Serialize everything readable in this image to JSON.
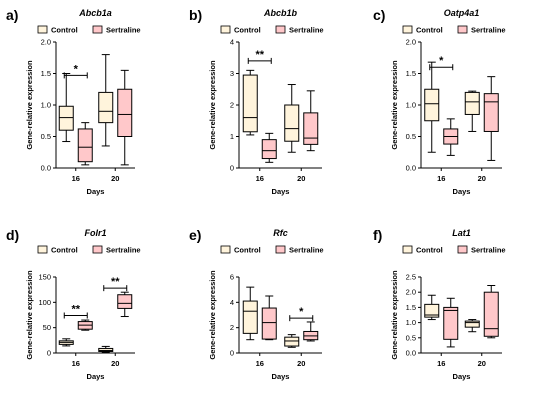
{
  "legend": {
    "control": "Control",
    "sertraline": "Sertraline"
  },
  "colors": {
    "control_fill": "#FFF4DC",
    "sertraline_fill": "#FFC8CA",
    "stroke": "#000000"
  },
  "chart_data": [
    {
      "panel_label": "a)",
      "type": "box",
      "title": "Abcb1a",
      "xlabel": "Days",
      "ylabel": "Gene-relative expression",
      "categories": [
        "16",
        "20"
      ],
      "ylim": [
        0,
        2.0
      ],
      "yticks": [
        0.0,
        0.5,
        1.0,
        1.5,
        2.0
      ],
      "tick_labels": [
        "0.0",
        "0.5",
        "1.0",
        "1.5",
        "2.0"
      ],
      "series": [
        {
          "name": "Control",
          "boxes": [
            {
              "min": 0.42,
              "q1": 0.6,
              "median": 0.8,
              "q3": 0.98,
              "max": 1.5
            },
            {
              "min": 0.35,
              "q1": 0.72,
              "median": 0.9,
              "q3": 1.2,
              "max": 1.8
            }
          ]
        },
        {
          "name": "Sertraline",
          "boxes": [
            {
              "min": 0.05,
              "q1": 0.1,
              "median": 0.33,
              "q3": 0.62,
              "max": 0.72
            },
            {
              "min": 0.05,
              "q1": 0.5,
              "median": 0.85,
              "q3": 1.25,
              "max": 1.55
            }
          ]
        }
      ],
      "significance": [
        {
          "category": "16",
          "label": "*",
          "value": 1.47
        }
      ]
    },
    {
      "panel_label": "b)",
      "type": "box",
      "title": "Abcb1b",
      "xlabel": "Days",
      "ylabel": "Gene-relative expression",
      "categories": [
        "16",
        "20"
      ],
      "ylim": [
        0,
        4
      ],
      "yticks": [
        0,
        1,
        2,
        3,
        4
      ],
      "tick_labels": [
        "0",
        "1",
        "2",
        "3",
        "4"
      ],
      "series": [
        {
          "name": "Control",
          "boxes": [
            {
              "min": 1.05,
              "q1": 1.15,
              "median": 1.6,
              "q3": 2.95,
              "max": 3.1
            },
            {
              "min": 0.5,
              "q1": 0.85,
              "median": 1.25,
              "q3": 2.0,
              "max": 2.65
            }
          ]
        },
        {
          "name": "Sertraline",
          "boxes": [
            {
              "min": 0.18,
              "q1": 0.3,
              "median": 0.55,
              "q3": 0.9,
              "max": 1.1
            },
            {
              "min": 0.55,
              "q1": 0.75,
              "median": 0.95,
              "q3": 1.75,
              "max": 2.45
            }
          ]
        }
      ],
      "significance": [
        {
          "category": "16",
          "label": "**",
          "value": 3.4
        }
      ]
    },
    {
      "panel_label": "c)",
      "type": "box",
      "title": "Oatp4a1",
      "xlabel": "Days",
      "ylabel": "Gene-relative expression",
      "categories": [
        "16",
        "20"
      ],
      "ylim": [
        0,
        2.0
      ],
      "yticks": [
        0.0,
        0.5,
        1.0,
        1.5,
        2.0
      ],
      "tick_labels": [
        "0.0",
        "0.5",
        "1.0",
        "1.5",
        "2.0"
      ],
      "series": [
        {
          "name": "Control",
          "boxes": [
            {
              "min": 0.25,
              "q1": 0.75,
              "median": 1.02,
              "q3": 1.25,
              "max": 1.68
            },
            {
              "min": 0.58,
              "q1": 0.85,
              "median": 1.05,
              "q3": 1.2,
              "max": 1.22
            }
          ]
        },
        {
          "name": "Sertraline",
          "boxes": [
            {
              "min": 0.2,
              "q1": 0.38,
              "median": 0.5,
              "q3": 0.62,
              "max": 0.78
            },
            {
              "min": 0.12,
              "q1": 0.58,
              "median": 1.05,
              "q3": 1.18,
              "max": 1.45
            }
          ]
        }
      ],
      "significance": [
        {
          "category": "16",
          "label": "*",
          "value": 1.6
        }
      ]
    },
    {
      "panel_label": "d)",
      "type": "box",
      "title": "Folr1",
      "xlabel": "Days",
      "ylabel": "Gene-relative expression",
      "categories": [
        "16",
        "20"
      ],
      "ylim": [
        0,
        150
      ],
      "yticks": [
        0,
        50,
        100,
        150
      ],
      "tick_labels": [
        "0",
        "50",
        "100",
        "150"
      ],
      "series": [
        {
          "name": "Control",
          "boxes": [
            {
              "min": 14,
              "q1": 17,
              "median": 21,
              "q3": 24,
              "max": 28
            },
            {
              "min": 2,
              "q1": 3,
              "median": 5,
              "q3": 9,
              "max": 13
            }
          ]
        },
        {
          "name": "Sertraline",
          "boxes": [
            {
              "min": 45,
              "q1": 47,
              "median": 55,
              "q3": 62,
              "max": 65
            },
            {
              "min": 72,
              "q1": 88,
              "median": 98,
              "q3": 115,
              "max": 120
            }
          ]
        }
      ],
      "significance": [
        {
          "category": "16",
          "label": "**",
          "value": 74
        },
        {
          "category": "20",
          "label": "**",
          "value": 128
        }
      ]
    },
    {
      "panel_label": "e)",
      "type": "box",
      "title": "Rfc",
      "xlabel": "Days",
      "ylabel": "Gene-relative expression",
      "categories": [
        "16",
        "20"
      ],
      "ylim": [
        0,
        6
      ],
      "yticks": [
        0,
        2,
        4,
        6
      ],
      "tick_labels": [
        "0",
        "2",
        "4",
        "6"
      ],
      "series": [
        {
          "name": "Control",
          "boxes": [
            {
              "min": 1.05,
              "q1": 1.55,
              "median": 3.3,
              "q3": 4.1,
              "max": 5.2
            },
            {
              "min": 0.45,
              "q1": 0.55,
              "median": 0.95,
              "q3": 1.25,
              "max": 1.45
            }
          ]
        },
        {
          "name": "Sertraline",
          "boxes": [
            {
              "min": 1.05,
              "q1": 1.1,
              "median": 2.4,
              "q3": 3.55,
              "max": 4.5
            },
            {
              "min": 0.95,
              "q1": 1.05,
              "median": 1.35,
              "q3": 1.7,
              "max": 2.45
            }
          ]
        }
      ],
      "significance": [
        {
          "category": "20",
          "label": "*",
          "value": 2.75
        }
      ]
    },
    {
      "panel_label": "f)",
      "type": "box",
      "title": "Lat1",
      "xlabel": "Days",
      "ylabel": "Gene-relative expression",
      "categories": [
        "16",
        "20"
      ],
      "ylim": [
        0,
        2.5
      ],
      "yticks": [
        0.0,
        0.5,
        1.0,
        1.5,
        2.0,
        2.5
      ],
      "tick_labels": [
        "0.0",
        "0.5",
        "1.0",
        "1.5",
        "2.0",
        "2.5"
      ],
      "series": [
        {
          "name": "Control",
          "boxes": [
            {
              "min": 1.1,
              "q1": 1.18,
              "median": 1.25,
              "q3": 1.6,
              "max": 1.9
            },
            {
              "min": 0.7,
              "q1": 0.85,
              "median": 1.0,
              "q3": 1.05,
              "max": 1.1
            }
          ]
        },
        {
          "name": "Sertraline",
          "boxes": [
            {
              "min": 0.2,
              "q1": 0.45,
              "median": 1.4,
              "q3": 1.5,
              "max": 1.8
            },
            {
              "min": 0.5,
              "q1": 0.55,
              "median": 0.8,
              "q3": 2.0,
              "max": 2.22
            }
          ]
        }
      ],
      "significance": []
    }
  ]
}
